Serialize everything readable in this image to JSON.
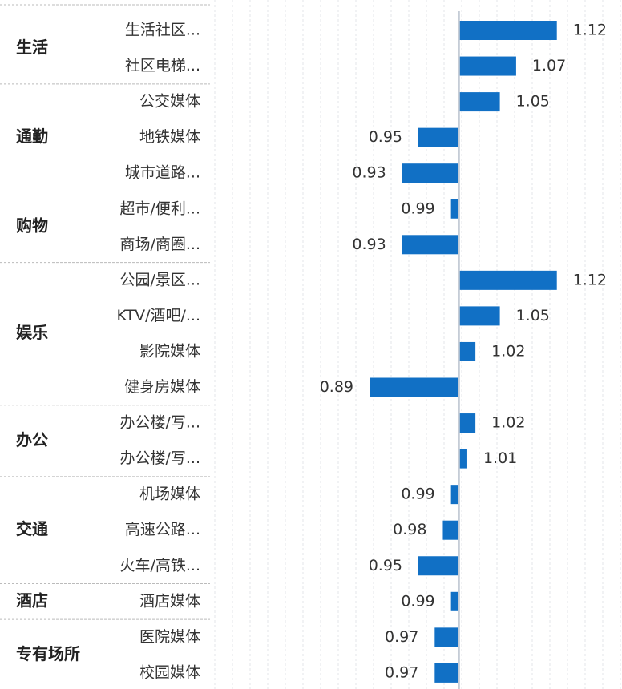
{
  "chart_data": {
    "type": "bar",
    "orientation": "horizontal",
    "color": "#1170c5",
    "baseline": 1,
    "xlim": [
      0.7,
      1.2
    ],
    "grid": true,
    "groups": [
      {
        "name": "生活",
        "categories": [
          "生活社区...",
          "社区电梯..."
        ],
        "values": [
          1.12,
          1.07
        ]
      },
      {
        "name": "通勤",
        "categories": [
          "公交媒体",
          "地铁媒体",
          "城市道路..."
        ],
        "values": [
          1.05,
          0.95,
          0.93
        ]
      },
      {
        "name": "购物",
        "categories": [
          "超市/便利...",
          "商场/商圈..."
        ],
        "values": [
          0.99,
          0.93
        ]
      },
      {
        "name": "娱乐",
        "categories": [
          "公园/景区...",
          "KTV/酒吧/...",
          "影院媒体",
          "健身房媒体"
        ],
        "values": [
          1.12,
          1.05,
          1.02,
          0.89
        ]
      },
      {
        "name": "办公",
        "categories": [
          "办公楼/写...",
          "办公楼/写..."
        ],
        "values": [
          1.02,
          1.01
        ]
      },
      {
        "name": "交通",
        "categories": [
          "机场媒体",
          "高速公路...",
          "火车/高铁..."
        ],
        "values": [
          0.99,
          0.98,
          0.95
        ]
      },
      {
        "name": "酒店",
        "categories": [
          "酒店媒体"
        ],
        "values": [
          0.99
        ]
      },
      {
        "name": "专有场所",
        "categories": [
          "医院媒体",
          "校园媒体"
        ],
        "values": [
          0.97,
          0.97
        ]
      }
    ]
  }
}
